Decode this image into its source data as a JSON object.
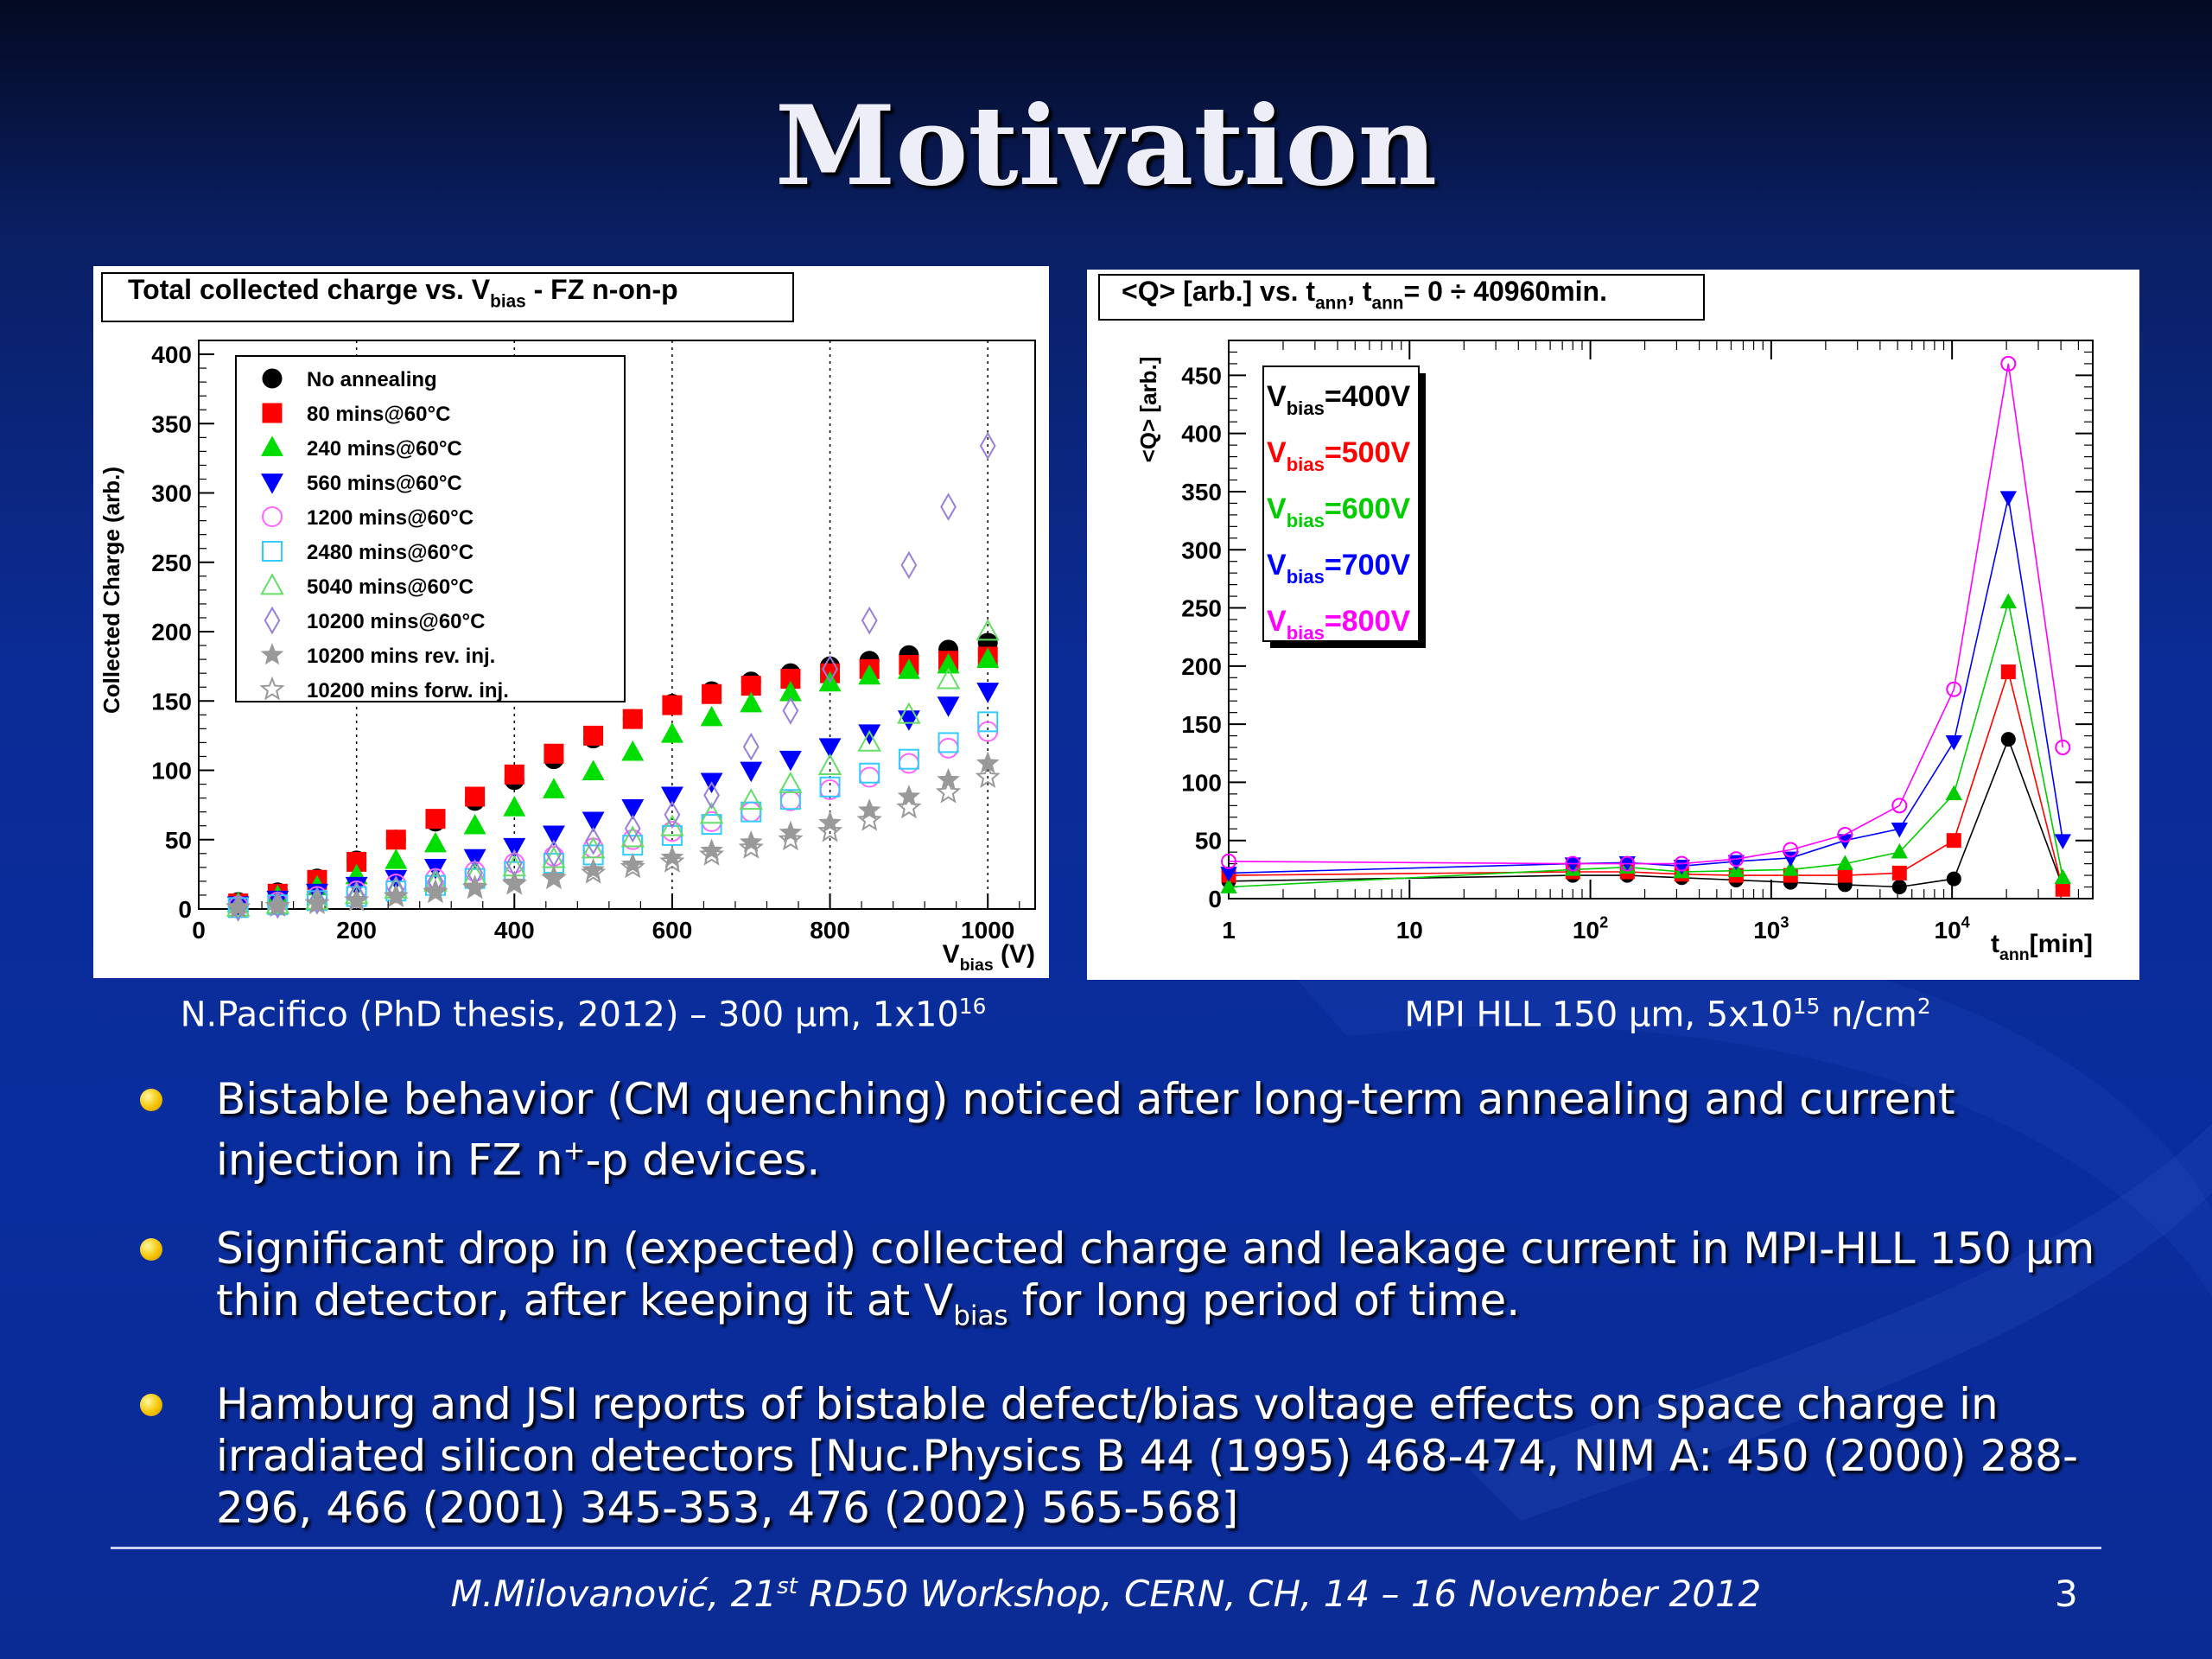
{
  "slide": {
    "title": "Motivation",
    "caption_left": {
      "main": "N.Pacifico (PhD thesis, 2012) – 300 µm, 1x10",
      "sup": "16"
    },
    "caption_right": {
      "main": "MPI HLL 150 µm, 5x10",
      "sup": "15",
      "tail": " n/cm",
      "sup2": "2"
    },
    "bullets": [
      {
        "parts": [
          "Bistable behavior (CM quenching) noticed after long-term annealing and current injection in FZ n",
          "+",
          "-p devices."
        ]
      },
      {
        "parts": [
          "Significant drop in (expected) collected charge and leakage current in MPI-HLL 150 µm thin detector, after keeping it at V",
          "bias",
          " for long period of time."
        ]
      },
      {
        "parts": [
          "Hamburg and JSI reports of bistable defect/bias voltage effects on space charge in irradiated silicon detectors [Nuc.Physics B 44 (1995) 468-474, NIM A: 450 (2000) 288-296, 466 (2001) 345-353, 476 (2002) 565-568]"
        ]
      }
    ],
    "footer": {
      "pre": "M.Milovanović, 21",
      "sup": "st",
      "post": " RD50 Workshop, CERN, CH, 14 – 16 November 2012"
    },
    "page_number": "3",
    "colors": {
      "bullet": "#f5c400",
      "background": "#0b2c96",
      "title": "#eeeef8"
    }
  },
  "chart_data": [
    {
      "type": "scatter",
      "title_parts": [
        "Total collected charge vs. V",
        "bias",
        " - FZ n-on-p"
      ],
      "ylabel": "Collected Charge (arb.)",
      "xlabel_parts": [
        "V",
        "bias",
        " (V)"
      ],
      "xlim": [
        0,
        1060
      ],
      "ylim": [
        0,
        410
      ],
      "xticks": [
        0,
        200,
        400,
        600,
        800,
        1000
      ],
      "yticks": [
        0,
        50,
        100,
        150,
        200,
        250,
        300,
        350,
        400
      ],
      "grid_x": [
        200,
        400,
        600,
        800,
        1000
      ],
      "legend_position": "top-left",
      "series": [
        {
          "name": "No annealing",
          "marker": "circle-filled",
          "color": "#000000",
          "x": [
            50,
            100,
            150,
            200,
            250,
            300,
            350,
            400,
            450,
            500,
            550,
            600,
            650,
            700,
            750,
            800,
            850,
            900,
            950,
            1000
          ],
          "y": [
            5,
            12,
            22,
            35,
            50,
            63,
            78,
            93,
            108,
            123,
            137,
            148,
            157,
            164,
            170,
            175,
            179,
            183,
            187,
            192
          ]
        },
        {
          "name": "80 mins@60°C",
          "marker": "square-filled",
          "color": "#ff0000",
          "x": [
            50,
            100,
            150,
            200,
            250,
            300,
            350,
            400,
            450,
            500,
            550,
            600,
            650,
            700,
            750,
            800,
            850,
            900,
            950,
            1000
          ],
          "y": [
            4,
            11,
            21,
            34,
            50,
            65,
            81,
            97,
            112,
            125,
            137,
            147,
            155,
            161,
            166,
            170,
            173,
            176,
            179,
            182
          ]
        },
        {
          "name": "240 mins@60°C",
          "marker": "triangle-up-filled",
          "color": "#00dd00",
          "x": [
            50,
            100,
            150,
            200,
            250,
            300,
            350,
            400,
            450,
            500,
            550,
            600,
            650,
            700,
            750,
            800,
            850,
            900,
            950,
            1000
          ],
          "y": [
            4,
            9,
            16,
            24,
            35,
            47,
            60,
            73,
            86,
            99,
            113,
            126,
            138,
            148,
            156,
            163,
            168,
            172,
            176,
            180
          ]
        },
        {
          "name": "560 mins@60°C",
          "marker": "triangle-down-filled",
          "color": "#0000ff",
          "x": [
            50,
            100,
            150,
            200,
            250,
            300,
            350,
            400,
            450,
            500,
            550,
            600,
            650,
            700,
            750,
            800,
            850,
            900,
            950,
            1000
          ],
          "y": [
            3,
            7,
            12,
            17,
            22,
            30,
            37,
            45,
            54,
            64,
            73,
            82,
            92,
            100,
            108,
            117,
            127,
            137,
            147,
            157
          ]
        },
        {
          "name": "1200 mins@60°C",
          "marker": "circle-open",
          "color": "#ff66ff",
          "x": [
            50,
            100,
            150,
            200,
            250,
            300,
            350,
            400,
            450,
            500,
            550,
            600,
            650,
            700,
            750,
            800,
            850,
            900,
            950,
            1000
          ],
          "y": [
            2,
            5,
            9,
            13,
            18,
            22,
            27,
            33,
            38,
            44,
            50,
            56,
            63,
            70,
            78,
            86,
            95,
            105,
            116,
            128
          ]
        },
        {
          "name": "2480 mins@60°C",
          "marker": "square-open",
          "color": "#33ccff",
          "x": [
            50,
            100,
            150,
            200,
            250,
            300,
            350,
            400,
            450,
            500,
            550,
            600,
            650,
            700,
            750,
            800,
            850,
            900,
            950,
            1000
          ],
          "y": [
            1,
            3,
            6,
            9,
            13,
            17,
            22,
            27,
            33,
            39,
            46,
            53,
            61,
            70,
            79,
            88,
            98,
            108,
            120,
            135
          ]
        },
        {
          "name": "5040 mins@60°C",
          "marker": "triangle-up-open",
          "color": "#66dd66",
          "x": [
            50,
            100,
            150,
            200,
            250,
            300,
            350,
            400,
            450,
            500,
            550,
            600,
            650,
            700,
            750,
            800,
            850,
            900,
            950,
            1000
          ],
          "y": [
            1,
            3,
            6,
            10,
            14,
            19,
            24,
            30,
            36,
            43,
            51,
            59,
            68,
            78,
            90,
            103,
            120,
            140,
            165,
            200
          ]
        },
        {
          "name": "10200 mins@60°C",
          "marker": "diamond-open",
          "color": "#9a7fd8",
          "x": [
            50,
            100,
            150,
            200,
            250,
            300,
            350,
            400,
            450,
            500,
            550,
            600,
            650,
            700,
            750,
            800,
            850,
            900,
            950,
            1000
          ],
          "y": [
            1,
            3,
            6,
            10,
            14,
            20,
            26,
            33,
            40,
            49,
            58,
            68,
            82,
            117,
            143,
            173,
            208,
            248,
            290,
            334
          ]
        },
        {
          "name": "10200 mins rev. inj.",
          "marker": "star-filled",
          "color": "#999999",
          "x": [
            50,
            100,
            150,
            200,
            250,
            300,
            350,
            400,
            450,
            500,
            550,
            600,
            650,
            700,
            750,
            800,
            850,
            900,
            950,
            1000
          ],
          "y": [
            1,
            2,
            4,
            6,
            9,
            13,
            16,
            19,
            23,
            28,
            32,
            37,
            42,
            48,
            55,
            62,
            71,
            81,
            93,
            105
          ]
        },
        {
          "name": "10200 mins forw. inj.",
          "marker": "star-open",
          "color": "#999999",
          "x": [
            50,
            100,
            150,
            200,
            250,
            300,
            350,
            400,
            450,
            500,
            550,
            600,
            650,
            700,
            750,
            800,
            850,
            900,
            950,
            1000
          ],
          "y": [
            1,
            2,
            4,
            6,
            9,
            12,
            15,
            18,
            22,
            26,
            30,
            34,
            39,
            44,
            50,
            56,
            64,
            73,
            84,
            95
          ]
        }
      ]
    },
    {
      "type": "line",
      "title_parts": [
        "<Q> [arb.] vs. t",
        "ann",
        ", t",
        "ann",
        "= 0 ÷ 40960min."
      ],
      "ylabel": "<Q> [arb.]",
      "xlabel_parts": [
        "t",
        "ann",
        "[min]"
      ],
      "xscale": "log",
      "xlim": [
        1,
        60000
      ],
      "ylim": [
        0,
        480
      ],
      "xtick_labels": [
        {
          "x": 1,
          "base": "1",
          "exp": ""
        },
        {
          "x": 10,
          "base": "10",
          "exp": ""
        },
        {
          "x": 100,
          "base": "10",
          "exp": "2"
        },
        {
          "x": 1000,
          "base": "10",
          "exp": "3"
        },
        {
          "x": 10000,
          "base": "10",
          "exp": "4"
        }
      ],
      "yticks": [
        0,
        50,
        100,
        150,
        200,
        250,
        300,
        350,
        400,
        450
      ],
      "legend_position": "top-left",
      "series": [
        {
          "name_parts": [
            "V",
            "bias",
            "=400V"
          ],
          "marker": "circle-filled",
          "color": "#000000",
          "x": [
            1,
            80,
            160,
            320,
            640,
            1280,
            2560,
            5120,
            10240,
            20480,
            40960
          ],
          "y": [
            15,
            20,
            20,
            18,
            16,
            14,
            12,
            10,
            17,
            137,
            10
          ]
        },
        {
          "name_parts": [
            "V",
            "bias",
            "=500V"
          ],
          "marker": "square-filled",
          "color": "#ff0000",
          "x": [
            1,
            80,
            160,
            320,
            640,
            1280,
            2560,
            5120,
            10240,
            20480,
            40960
          ],
          "y": [
            20,
            23,
            23,
            21,
            20,
            20,
            20,
            22,
            50,
            195,
            8
          ]
        },
        {
          "name_parts": [
            "V",
            "bias",
            "=600V"
          ],
          "marker": "triangle-up-filled",
          "color": "#00cc00",
          "x": [
            1,
            80,
            160,
            320,
            640,
            1280,
            2560,
            5120,
            10240,
            20480,
            40960
          ],
          "y": [
            10,
            25,
            27,
            23,
            24,
            25,
            30,
            40,
            90,
            255,
            18
          ]
        },
        {
          "name_parts": [
            "V",
            "bias",
            "=700V"
          ],
          "marker": "triangle-down-filled",
          "color": "#0000ff",
          "x": [
            1,
            80,
            160,
            320,
            640,
            1280,
            2560,
            5120,
            10240,
            20480,
            40960
          ],
          "y": [
            22,
            30,
            31,
            28,
            32,
            35,
            50,
            60,
            135,
            345,
            50
          ]
        },
        {
          "name_parts": [
            "V",
            "bias",
            "=800V"
          ],
          "marker": "circle-open",
          "color": "#ff00ff",
          "x": [
            1,
            80,
            160,
            320,
            640,
            1280,
            2560,
            5120,
            10240,
            20480,
            40960
          ],
          "y": [
            32,
            30,
            30,
            30,
            34,
            42,
            55,
            80,
            180,
            460,
            130
          ]
        }
      ]
    }
  ]
}
